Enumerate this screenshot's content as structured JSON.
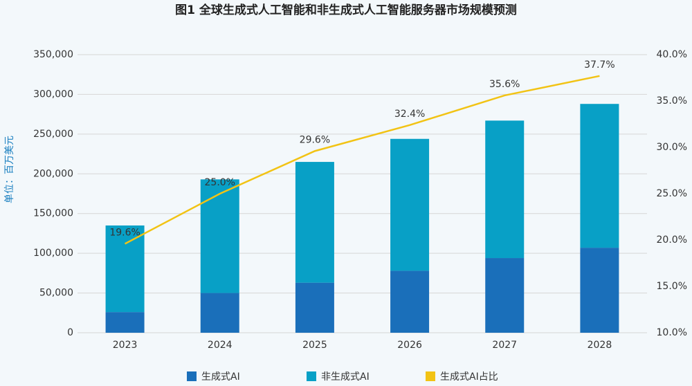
{
  "chart_data": {
    "type": "bar",
    "stacked": true,
    "title": "图1 全球生成式人工智能和非生成式人工智能服务器市场规模预测",
    "y_label": "单位：百万美元",
    "categories": [
      "2023",
      "2024",
      "2025",
      "2026",
      "2027",
      "2028"
    ],
    "series": [
      {
        "name": "生成式AI",
        "color": "#1a6fba",
        "values": [
          26000,
          50000,
          63000,
          78000,
          94000,
          107000
        ]
      },
      {
        "name": "非生成式AI",
        "color": "#08a0c6",
        "values": [
          109000,
          143000,
          152000,
          166000,
          173000,
          181000
        ]
      },
      {
        "name": "生成式AI占比",
        "color": "#f2c314",
        "type": "line",
        "axis": "y2",
        "values": [
          19.6,
          25.0,
          29.6,
          32.4,
          35.6,
          37.7
        ],
        "value_labels": [
          "19.6%",
          "25.0%",
          "29.6%",
          "32.4%",
          "35.6%",
          "37.7%"
        ]
      }
    ],
    "ylim": [
      0,
      350000
    ],
    "yticks": [
      0,
      {
        "value": 50000,
        "label": "50,000"
      },
      {
        "value": 100000,
        "label": "100,000"
      },
      {
        "value": 150000,
        "label": "150,000"
      },
      {
        "value": 200000,
        "label": "200,000"
      },
      {
        "value": 250000,
        "label": "250,000"
      },
      {
        "value": 300000,
        "label": "300,000"
      },
      {
        "value": 350000,
        "label": "350,000"
      }
    ],
    "y2lim": [
      10,
      40
    ],
    "y2ticks": [
      {
        "value": 10,
        "label": "10.0%"
      },
      {
        "value": 15,
        "label": "15.0%"
      },
      {
        "value": 20,
        "label": "20.0%"
      },
      {
        "value": 25,
        "label": "25.0%"
      },
      {
        "value": 30,
        "label": "30.0%"
      },
      {
        "value": 35,
        "label": "35.0%"
      },
      {
        "value": 40,
        "label": "40.0%"
      }
    ],
    "grid": true,
    "legend": "bottom"
  }
}
